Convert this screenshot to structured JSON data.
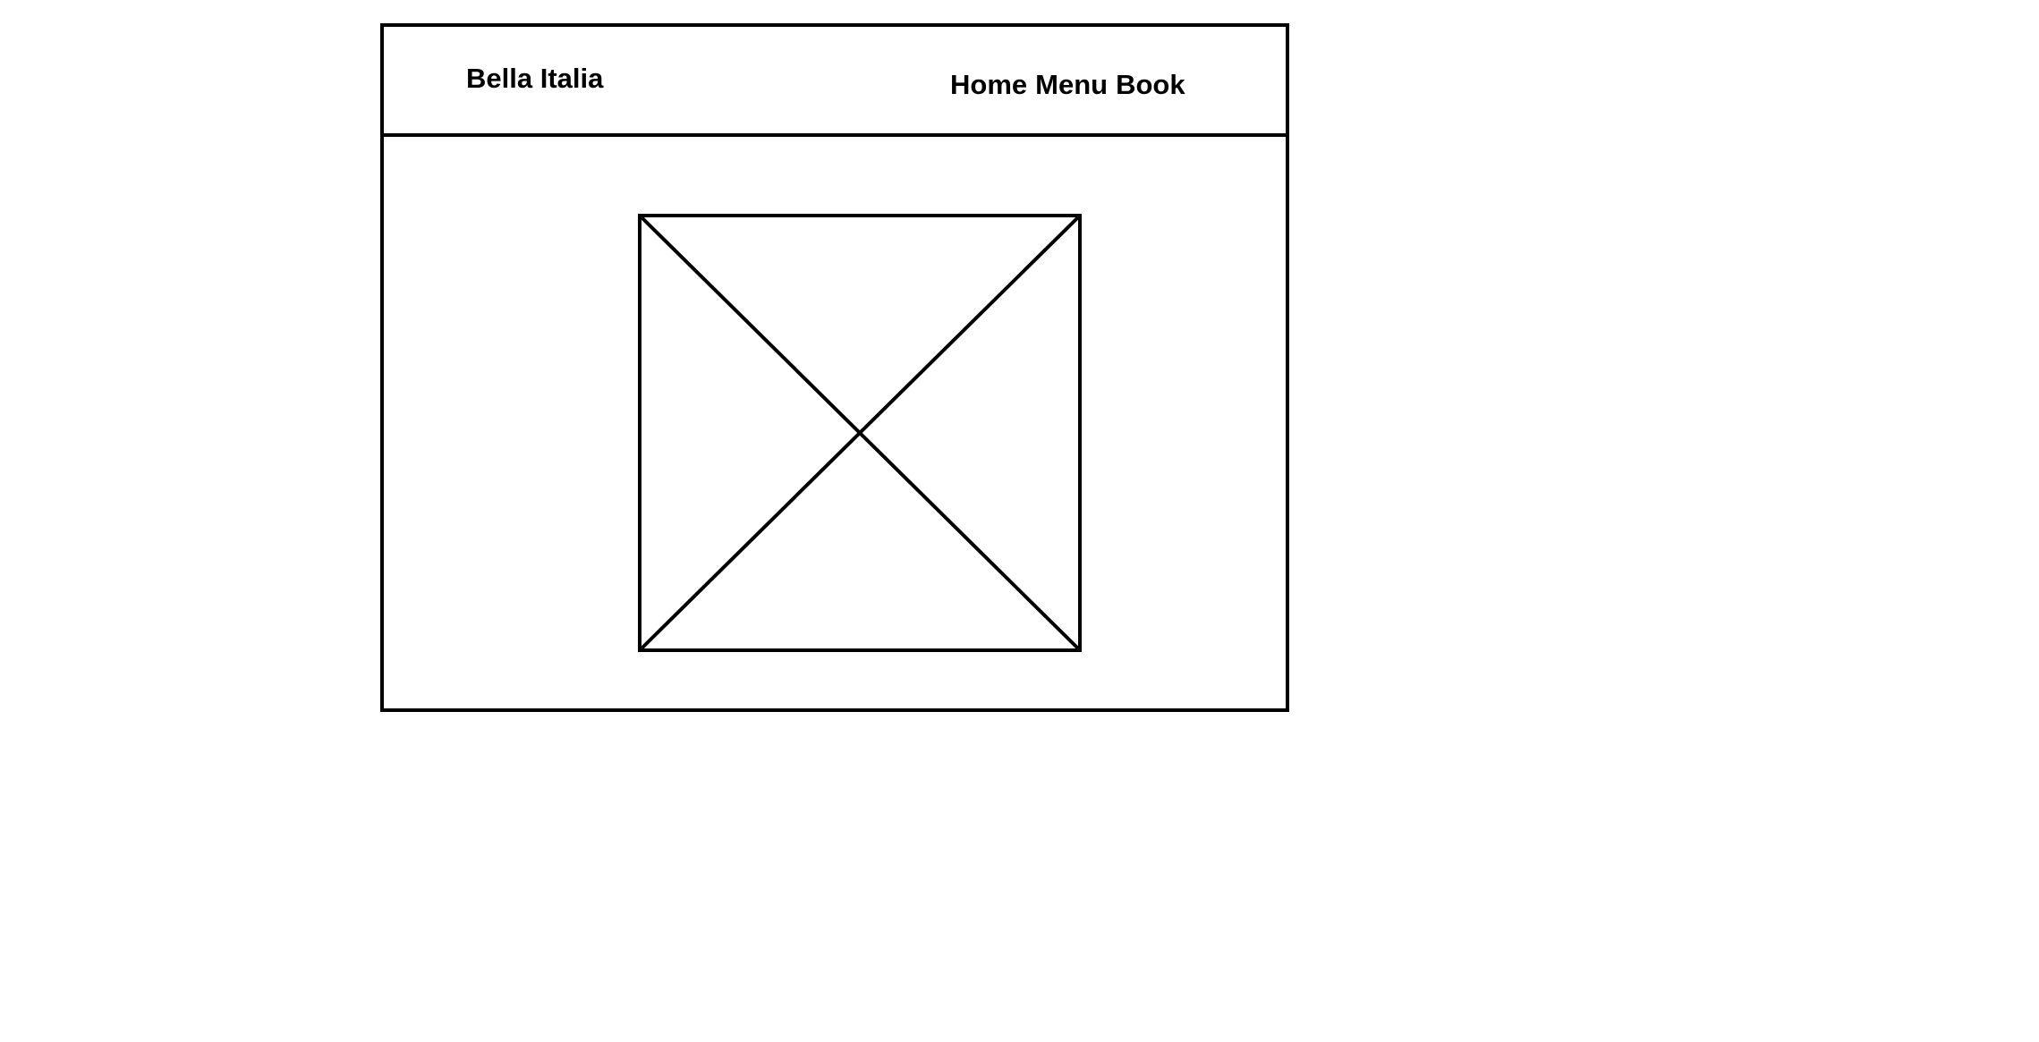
{
  "header": {
    "brand": "Bella Italia",
    "nav": {
      "home": "Home",
      "menu": "Menu",
      "book": "Book"
    }
  },
  "hero": {
    "image_placeholder": "image-placeholder-icon"
  },
  "colors": {
    "stroke": "#000000",
    "background": "#ffffff"
  }
}
